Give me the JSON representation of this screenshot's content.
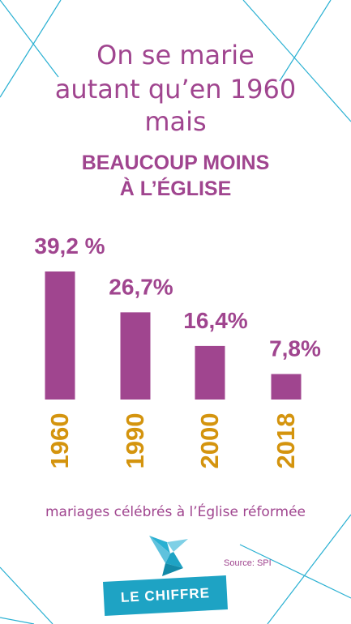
{
  "title": {
    "line1": "On se marie",
    "line2": "autant qu’en 1960",
    "line3": "mais"
  },
  "subtitle": {
    "line1": "BEAUCOUP MOINS",
    "line2": "À L’ÉGLISE"
  },
  "chart_data": {
    "type": "bar",
    "categories": [
      "1960",
      "1990",
      "2000",
      "2018"
    ],
    "values": [
      39.2,
      26.7,
      16.4,
      7.8
    ],
    "value_labels": [
      "39,2 %",
      "26,7%",
      "16,4%",
      "7,8%"
    ],
    "xlabel": "mariages célébrés à l’Église réformée",
    "ylabel": "",
    "ylim": [
      0,
      39.2
    ],
    "grid": false,
    "bar_color": "#a0458f",
    "label_color": "#a0458f",
    "category_color": "#d4940e"
  },
  "source": "Source: SPI",
  "badge": "LE CHIFFRE",
  "colors": {
    "accent": "#a0458f",
    "year": "#d4940e",
    "brand": "#1ea3c4"
  }
}
